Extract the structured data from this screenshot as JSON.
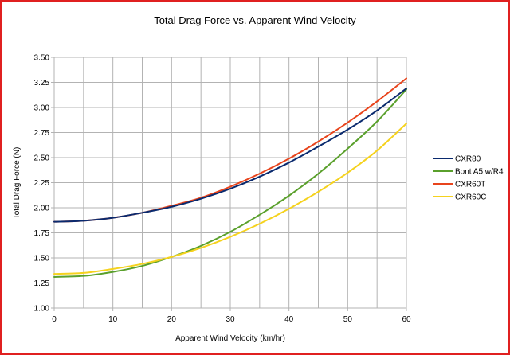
{
  "chart_data": {
    "type": "line",
    "title": "Total Drag Force vs. Apparent Wind Velocity",
    "xlabel": "Apparent Wind Velocity (km/hr)",
    "ylabel": "Total Drag Force (N)",
    "xlim": [
      0,
      60
    ],
    "ylim": [
      1.0,
      3.5
    ],
    "x_ticks": [
      "0",
      "10",
      "20",
      "30",
      "40",
      "50",
      "60"
    ],
    "x_tick_values": [
      0,
      10,
      20,
      30,
      40,
      50,
      60
    ],
    "y_ticks": [
      "1.00",
      "1.25",
      "1.50",
      "1.75",
      "2.00",
      "2.25",
      "2.50",
      "2.75",
      "3.00",
      "3.25",
      "3.50"
    ],
    "y_tick_values": [
      1.0,
      1.25,
      1.5,
      1.75,
      2.0,
      2.25,
      2.5,
      2.75,
      3.0,
      3.25,
      3.5
    ],
    "grid": true,
    "legend_position": "right",
    "x": [
      0,
      5,
      10,
      15,
      20,
      25,
      30,
      35,
      40,
      45,
      50,
      55,
      60
    ],
    "series": [
      {
        "name": "CXR80",
        "color": "#0a2a6e",
        "values": [
          1.86,
          1.87,
          1.9,
          1.95,
          2.01,
          2.09,
          2.19,
          2.31,
          2.45,
          2.61,
          2.78,
          2.97,
          3.19
        ]
      },
      {
        "name": "Bont A5 w/R4",
        "color": "#5aa02c",
        "values": [
          1.31,
          1.32,
          1.36,
          1.42,
          1.51,
          1.62,
          1.76,
          1.93,
          2.12,
          2.34,
          2.59,
          2.86,
          3.18
        ]
      },
      {
        "name": "CXR60T",
        "color": "#e8441c",
        "values": [
          1.86,
          1.87,
          1.9,
          1.95,
          2.02,
          2.1,
          2.21,
          2.34,
          2.49,
          2.66,
          2.85,
          3.06,
          3.29
        ]
      },
      {
        "name": "CXR60C",
        "color": "#f5d21e",
        "values": [
          1.34,
          1.35,
          1.39,
          1.44,
          1.51,
          1.6,
          1.71,
          1.84,
          1.99,
          2.16,
          2.35,
          2.57,
          2.84
        ]
      }
    ]
  }
}
